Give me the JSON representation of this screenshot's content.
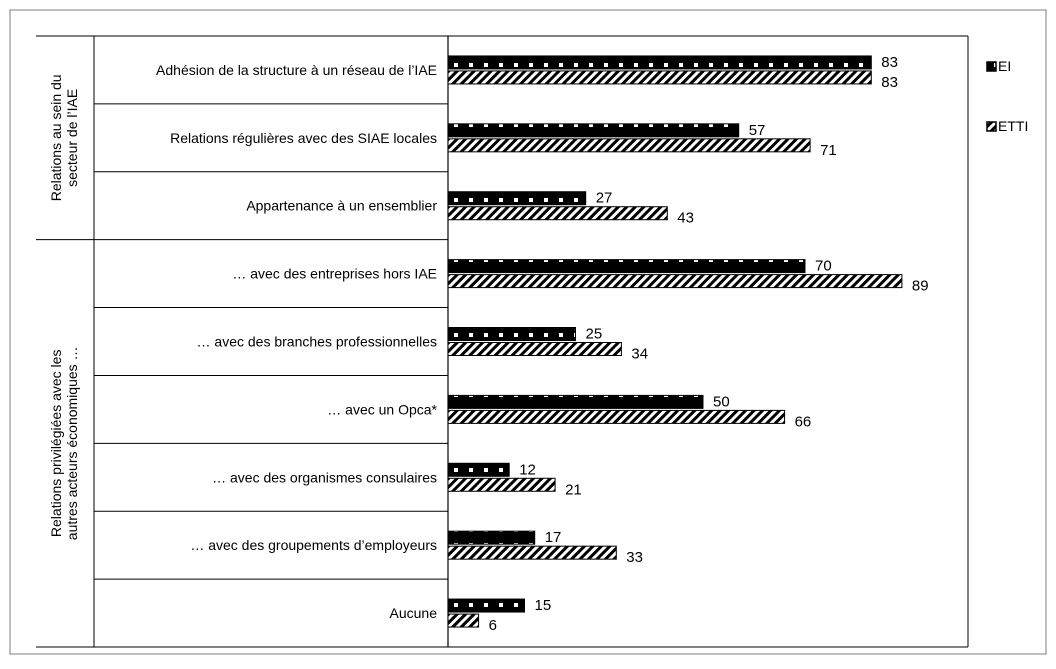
{
  "chart_data": {
    "type": "bar",
    "orientation": "horizontal",
    "groups": [
      {
        "label": "Relations au sein du secteur de l’IAE",
        "lines": [
          "Relations au sein du",
          "secteur de l’IAE"
        ],
        "start": 0,
        "end": 3
      },
      {
        "label": "Relations privilégiées avec les autres acteurs économiques …",
        "lines": [
          "Relations privilégiées avec les",
          "autres acteurs économiques …"
        ],
        "start": 3,
        "end": 9
      }
    ],
    "categories": [
      "Adhésion de la structure à un réseau de l’IAE",
      "Relations régulières avec des SIAE locales",
      "Appartenance à un ensemblier",
      "… avec des entreprises hors IAE",
      "… avec des branches professionnelles",
      "… avec un Opca*",
      "… avec des organismes consulaires",
      "… avec des groupements d’employeurs",
      "Aucune"
    ],
    "series": [
      {
        "name": "EI",
        "values": [
          83,
          57,
          27,
          70,
          25,
          50,
          12,
          17,
          15
        ],
        "pattern": "dotted"
      },
      {
        "name": "ETTI",
        "values": [
          83,
          71,
          43,
          89,
          34,
          66,
          21,
          33,
          6
        ],
        "pattern": "hatched"
      }
    ],
    "xlim": [
      0,
      100
    ],
    "legend_position": "right",
    "grid": false
  }
}
